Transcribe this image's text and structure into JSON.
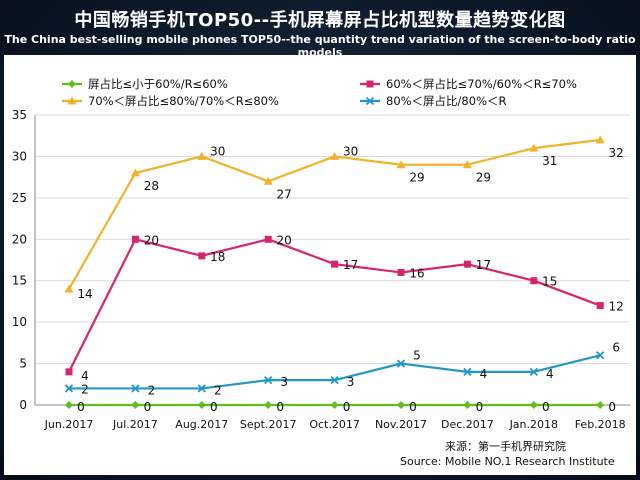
{
  "header": {
    "title": "中国畅销手机TOP50--手机屏幕屏占比机型数量趋势变化图",
    "subtitle": "The China best-selling mobile phones TOP50--the quantity trend variation of the screen-to-body ratio models"
  },
  "source": {
    "line1": "来源：第一手机界研究院",
    "line2": "Source: Mobile NO.1 Research Institute"
  },
  "colors": {
    "s1": "#5fbf1f",
    "s2": "#d6246e",
    "s3": "#f0b32b",
    "s4": "#2596c7",
    "background": "#0d1a2b",
    "plot": "#ffffff"
  },
  "chart_data": {
    "type": "line",
    "title": "中国畅销手机TOP50--手机屏幕屏占比机型数量趋势变化图",
    "subtitle": "The China best-selling mobile phones TOP50--the quantity trend variation of the screen-to-body ratio models",
    "xlabel": "",
    "ylabel": "",
    "ylim": [
      0,
      35
    ],
    "yticks": [
      "0",
      "5",
      "10",
      "15",
      "20",
      "25",
      "30",
      "35"
    ],
    "grid": true,
    "legend_placement": "top",
    "categories": [
      "Jun.2017",
      "Jul.2017",
      "Aug.2017",
      "Sept.2017",
      "Oct.2017",
      "Nov.2017",
      "Dec.2017",
      "Jan.2018",
      "Feb.2018"
    ],
    "series": [
      {
        "name": "屏占比≤小于60%/R≤60%",
        "marker": "diamond",
        "color": "#5fbf1f",
        "values": [
          0,
          0,
          0,
          0,
          0,
          0,
          0,
          0,
          0
        ],
        "labels": [
          "0",
          "0",
          "0",
          "0",
          "0",
          "0",
          "0",
          "0",
          "0"
        ]
      },
      {
        "name": "60%＜屏占比≤70%/60%＜R≤70%",
        "marker": "square",
        "color": "#d6246e",
        "values": [
          4,
          20,
          18,
          20,
          17,
          16,
          17,
          15,
          12
        ],
        "labels": [
          "4",
          "20",
          "18",
          "20",
          "17",
          "16",
          "17",
          "15",
          "12"
        ]
      },
      {
        "name": "70%＜屏占比≤80%/70%＜R≤80%",
        "marker": "triangle",
        "color": "#f0b32b",
        "values": [
          14,
          28,
          30,
          27,
          30,
          29,
          29,
          31,
          32
        ],
        "labels": [
          "14",
          "28",
          "30",
          "27",
          "30",
          "29",
          "29",
          "31",
          "32"
        ]
      },
      {
        "name": "80%＜屏占比/80%＜R",
        "marker": "x",
        "color": "#2596c7",
        "values": [
          2,
          2,
          2,
          3,
          3,
          5,
          4,
          4,
          6
        ],
        "labels": [
          "2",
          "2",
          "2",
          "3",
          "3",
          "5",
          "4",
          "4",
          "6"
        ]
      }
    ]
  }
}
